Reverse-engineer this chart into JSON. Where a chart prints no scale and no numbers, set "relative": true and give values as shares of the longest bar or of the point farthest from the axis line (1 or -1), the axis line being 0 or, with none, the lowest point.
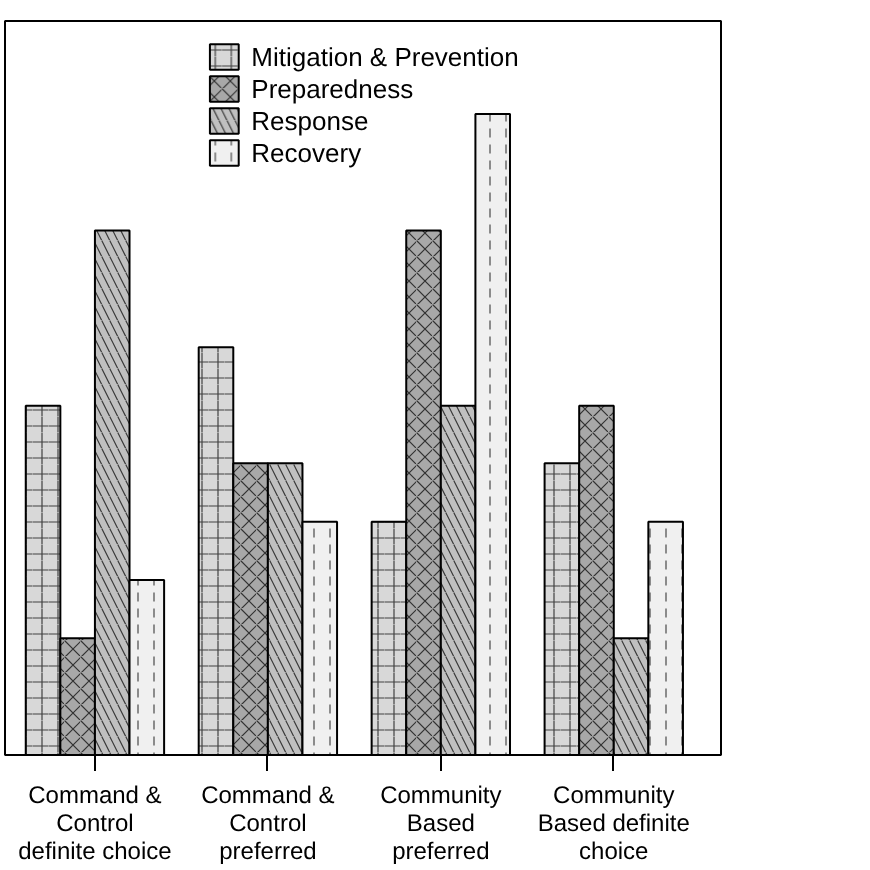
{
  "chart_data": {
    "type": "bar",
    "relative": true,
    "categories": [
      "Command &\nControl\ndefinite choice",
      "Command &\nControl\npreferred",
      "Community\nBased\npreferred",
      "Community\nBased definite\nchoice"
    ],
    "series": [
      {
        "name": "Mitigation & Prevention",
        "color": "#d8d8d8",
        "values": [
          0.545,
          0.636,
          0.364,
          0.455
        ]
      },
      {
        "name": "Preparedness",
        "color": "#a8a8a8",
        "values": [
          0.182,
          0.455,
          0.818,
          0.545
        ]
      },
      {
        "name": "Response",
        "color": "#c0c0c0",
        "values": [
          0.818,
          0.455,
          0.545,
          0.182
        ]
      },
      {
        "name": "Recovery",
        "color": "#f0f0f0",
        "values": [
          0.273,
          0.364,
          1.0,
          0.364
        ]
      }
    ],
    "legend": "top",
    "grid": false
  }
}
